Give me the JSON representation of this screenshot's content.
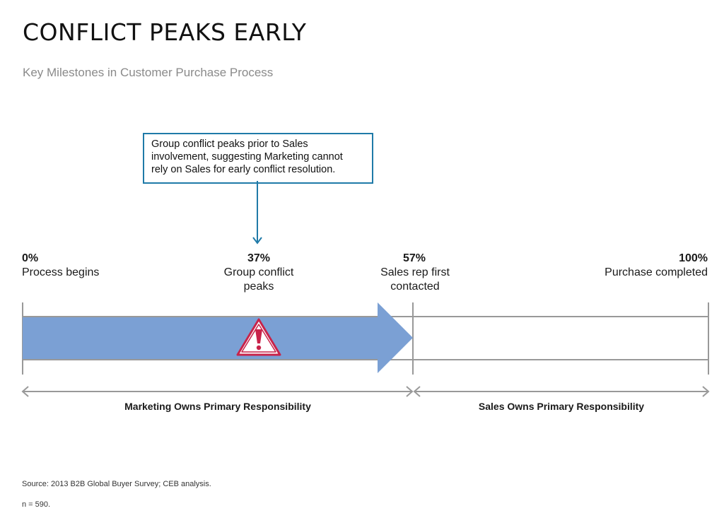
{
  "title": "CONFLICT PEAKS EARLY",
  "subtitle": "Key Milestones in Customer Purchase Process",
  "callout": {
    "lines": [
      "Group conflict peaks prior to Sales",
      "involvement, suggesting Marketing cannot",
      "rely on Sales for early conflict resolution."
    ]
  },
  "milestones": [
    {
      "pct": "0%",
      "label": [
        "Process begins"
      ]
    },
    {
      "pct": "37%",
      "label": [
        "Group conflict",
        "peaks"
      ]
    },
    {
      "pct": "57%",
      "label": [
        "Sales rep first",
        "contacted"
      ]
    },
    {
      "pct": "100%",
      "label": [
        "Purchase completed"
      ]
    }
  ],
  "responsibility": {
    "marketing": "Marketing Owns Primary Responsibility",
    "sales": "Sales Owns Primary Responsibility"
  },
  "footer": {
    "source": "Source: 2013 B2B Global Buyer Survey; CEB analysis.",
    "n": "n = 590."
  },
  "colors": {
    "arrow": "#7ba0d4",
    "callout_border": "#1f7aa8",
    "warning": "#c8234a",
    "lines": "#999999"
  },
  "icons": {
    "warning": "warning-triangle-icon"
  }
}
